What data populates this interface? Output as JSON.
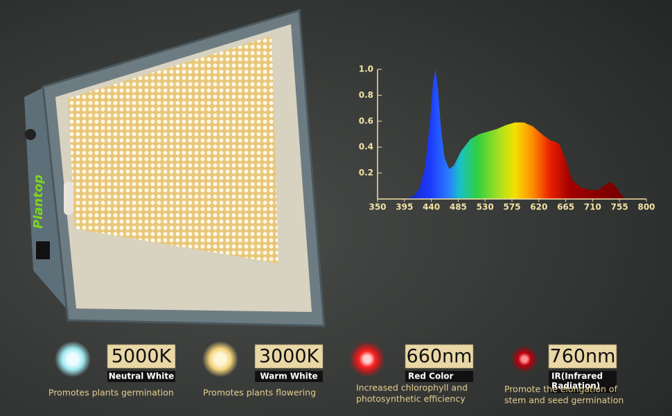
{
  "brand": "Plantop",
  "chart_data": {
    "type": "area",
    "x": [
      395,
      410,
      420,
      430,
      438,
      443,
      447,
      451,
      456,
      462,
      470,
      478,
      490,
      505,
      520,
      535,
      550,
      565,
      580,
      595,
      610,
      625,
      640,
      648,
      655,
      665,
      675,
      690,
      705,
      720,
      735,
      741,
      748,
      757,
      765
    ],
    "values": [
      0,
      0.02,
      0.08,
      0.25,
      0.6,
      0.9,
      1.0,
      0.85,
      0.55,
      0.32,
      0.23,
      0.26,
      0.37,
      0.46,
      0.5,
      0.52,
      0.54,
      0.57,
      0.59,
      0.59,
      0.56,
      0.5,
      0.45,
      0.44,
      0.42,
      0.3,
      0.15,
      0.09,
      0.07,
      0.07,
      0.12,
      0.13,
      0.1,
      0.04,
      0
    ],
    "xlim": [
      350,
      800
    ],
    "xticks": [
      350,
      395,
      440,
      485,
      530,
      575,
      620,
      665,
      710,
      755,
      800
    ],
    "ylim": [
      0,
      1
    ],
    "yticks": [
      0.2,
      0.4,
      0.6,
      0.8,
      {
        "value": 1,
        "label": "1.0"
      }
    ]
  },
  "features": [
    {
      "value": "5000K",
      "name": "Neutral White",
      "description": [
        "Promotes plants germination"
      ]
    },
    {
      "value": "3000K",
      "name": "Warm White",
      "description": [
        "Promotes plants flowering"
      ]
    },
    {
      "value": "660nm",
      "name": [
        "Red Color"
      ],
      "description": [
        "Increased chlorophyll and",
        "photosynthetic efficiency"
      ]
    },
    {
      "value": "760nm",
      "name": [
        "IR(Infrared",
        "Radiation)"
      ],
      "description": [
        "Promote the elongation of",
        "stem and seed germination"
      ]
    }
  ]
}
